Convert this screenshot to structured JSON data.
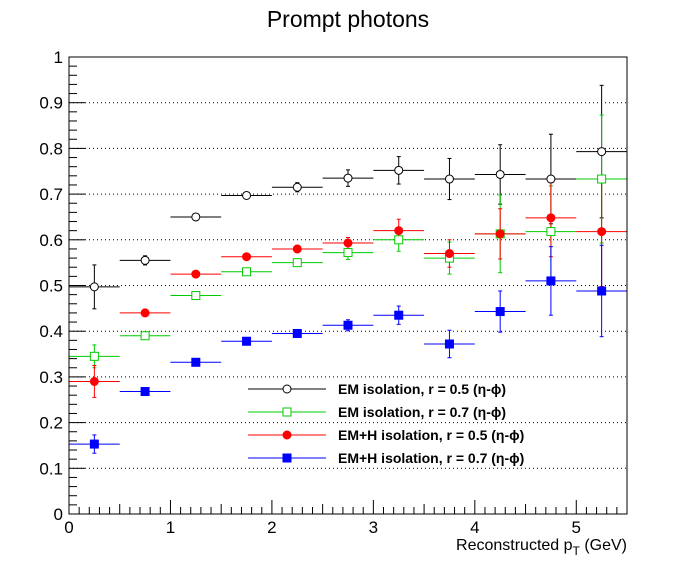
{
  "chart_data": {
    "type": "scatter",
    "title": "Prompt photons",
    "xlabel": "Reconstructed p",
    "xlabel_sub": "T",
    "xlabel_unit": " (GeV)",
    "xlim": [
      0,
      5.5
    ],
    "ylim": [
      0,
      1
    ],
    "x_ticks": [
      "0",
      "1",
      "2",
      "3",
      "4",
      "5"
    ],
    "y_ticks": [
      "0",
      "0.1",
      "0.2",
      "0.3",
      "0.4",
      "0.5",
      "0.6",
      "0.7",
      "0.8",
      "0.9",
      "1"
    ],
    "grid": "horizontal dotted",
    "legend_position": "bottom-center",
    "x": [
      0.25,
      0.75,
      1.25,
      1.75,
      2.25,
      2.75,
      3.25,
      3.75,
      4.25,
      4.75,
      5.25
    ],
    "x_err": 0.25,
    "series": [
      {
        "name": "EM isolation, r = 0.5 (η-ϕ)",
        "color": "#000000",
        "marker": "open-circle",
        "values": [
          0.497,
          0.555,
          0.65,
          0.697,
          0.715,
          0.735,
          0.752,
          0.733,
          0.743,
          0.733,
          0.793
        ],
        "errors": [
          0.048,
          0.01,
          0.004,
          0.004,
          0.01,
          0.018,
          0.03,
          0.045,
          0.065,
          0.098,
          0.145
        ]
      },
      {
        "name": "EM isolation, r = 0.7 (η-ϕ)",
        "color": "#00cc00",
        "marker": "open-square",
        "values": [
          0.345,
          0.39,
          0.478,
          0.53,
          0.55,
          0.572,
          0.6,
          0.56,
          0.613,
          0.618,
          0.733
        ],
        "errors": [
          0.025,
          0.008,
          0.004,
          0.004,
          0.008,
          0.015,
          0.025,
          0.035,
          0.085,
          0.1,
          0.14
        ]
      },
      {
        "name": "EM+H isolation, r = 0.5 (η-ϕ)",
        "color": "#ff0000",
        "marker": "filled-circle",
        "values": [
          0.29,
          0.44,
          0.525,
          0.563,
          0.58,
          0.593,
          0.62,
          0.57,
          0.613,
          0.648,
          0.618
        ],
        "errors": [
          0.035,
          0.008,
          0.004,
          0.004,
          0.008,
          0.012,
          0.025,
          0.03,
          0.055,
          0.085,
          0.12
        ]
      },
      {
        "name": "EM+H isolation, r = 0.7 (η-ϕ)",
        "color": "#0000ff",
        "marker": "filled-square",
        "values": [
          0.153,
          0.268,
          0.332,
          0.378,
          0.395,
          0.413,
          0.435,
          0.372,
          0.443,
          0.51,
          0.488
        ],
        "errors": [
          0.02,
          0.006,
          0.004,
          0.004,
          0.006,
          0.012,
          0.02,
          0.03,
          0.045,
          0.075,
          0.1
        ]
      }
    ]
  }
}
